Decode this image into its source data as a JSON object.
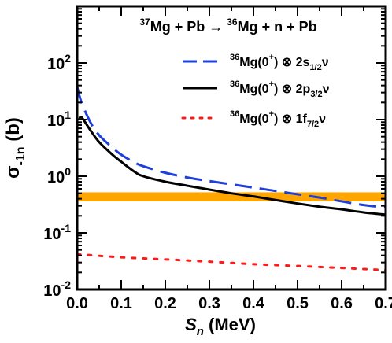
{
  "chart_data": {
    "type": "line",
    "title": {
      "parts": [
        {
          "text": "37",
          "sup": true
        },
        {
          "text": "Mg + Pb "
        },
        {
          "text": "→"
        },
        {
          "text": " "
        },
        {
          "text": "36",
          "sup": true
        },
        {
          "text": "Mg + n + Pb"
        }
      ]
    },
    "xlabel": {
      "italic": "S",
      "sub": "n",
      "rest": " (MeV)"
    },
    "ylabel": {
      "main": "σ",
      "sub": "-1n",
      "rest": " (b)"
    },
    "xlim": [
      0.0,
      0.7
    ],
    "ylim": [
      0.01,
      1000
    ],
    "yscale": "log",
    "x_ticks": [
      "0.0",
      "0.1",
      "0.2",
      "0.3",
      "0.4",
      "0.5",
      "0.6",
      "0.7"
    ],
    "y_ticks": [
      {
        "base": "10",
        "exp": "-2",
        "value": 0.01
      },
      {
        "base": "10",
        "exp": "-1",
        "value": 0.1
      },
      {
        "base": "10",
        "exp": "0",
        "value": 1
      },
      {
        "base": "10",
        "exp": "1",
        "value": 10
      },
      {
        "base": "10",
        "exp": "2",
        "value": 100
      }
    ],
    "band": {
      "color": "#FFA500",
      "y_low": 0.36,
      "y_high": 0.52
    },
    "series": [
      {
        "name": "36Mg(0+) ⊗ 2s1/2ν",
        "legend": [
          {
            "text": "36",
            "sup": true
          },
          {
            "text": "Mg(0"
          },
          {
            "text": "+",
            "sup": true
          },
          {
            "text": ") ⊗ 2s"
          },
          {
            "text": "1/2",
            "sub": true
          },
          {
            "text": "ν"
          }
        ],
        "color": "#1F3FD9",
        "style": "dashed",
        "x": [
          0.0,
          0.01,
          0.03,
          0.05,
          0.08,
          0.1,
          0.13,
          0.15,
          0.2,
          0.25,
          0.3,
          0.35,
          0.4,
          0.45,
          0.5,
          0.55,
          0.6,
          0.65,
          0.7
        ],
        "y": [
          38,
          20,
          9,
          5.3,
          3.2,
          2.4,
          1.75,
          1.5,
          1.15,
          0.95,
          0.82,
          0.72,
          0.63,
          0.55,
          0.48,
          0.42,
          0.36,
          0.31,
          0.28
        ]
      },
      {
        "name": "36Mg(0+) ⊗ 2p3/2ν",
        "legend": [
          {
            "text": "36",
            "sup": true
          },
          {
            "text": "Mg(0"
          },
          {
            "text": "+",
            "sup": true
          },
          {
            "text": ") ⊗ 2p"
          },
          {
            "text": "3/2",
            "sub": true
          },
          {
            "text": "ν"
          }
        ],
        "color": "#000000",
        "style": "solid",
        "x": [
          0.005,
          0.01,
          0.03,
          0.05,
          0.08,
          0.1,
          0.13,
          0.15,
          0.2,
          0.25,
          0.3,
          0.35,
          0.4,
          0.45,
          0.5,
          0.55,
          0.6,
          0.65,
          0.7
        ],
        "y": [
          10,
          11,
          6.5,
          4.0,
          2.4,
          1.8,
          1.2,
          1.0,
          0.8,
          0.68,
          0.58,
          0.5,
          0.44,
          0.38,
          0.33,
          0.29,
          0.26,
          0.23,
          0.21
        ]
      },
      {
        "name": "36Mg(0+) ⊗ 1f7/2ν",
        "legend": [
          {
            "text": "36",
            "sup": true
          },
          {
            "text": "Mg(0"
          },
          {
            "text": "+",
            "sup": true
          },
          {
            "text": ") ⊗ 1f"
          },
          {
            "text": "7/2",
            "sub": true
          },
          {
            "text": "ν"
          }
        ],
        "color": "#FF1A1A",
        "style": "dotted",
        "x": [
          0.0,
          0.1,
          0.2,
          0.3,
          0.4,
          0.5,
          0.6,
          0.7
        ],
        "y": [
          0.042,
          0.037,
          0.034,
          0.031,
          0.028,
          0.026,
          0.024,
          0.022
        ]
      }
    ],
    "grid": false,
    "legend_position": "top-right"
  }
}
